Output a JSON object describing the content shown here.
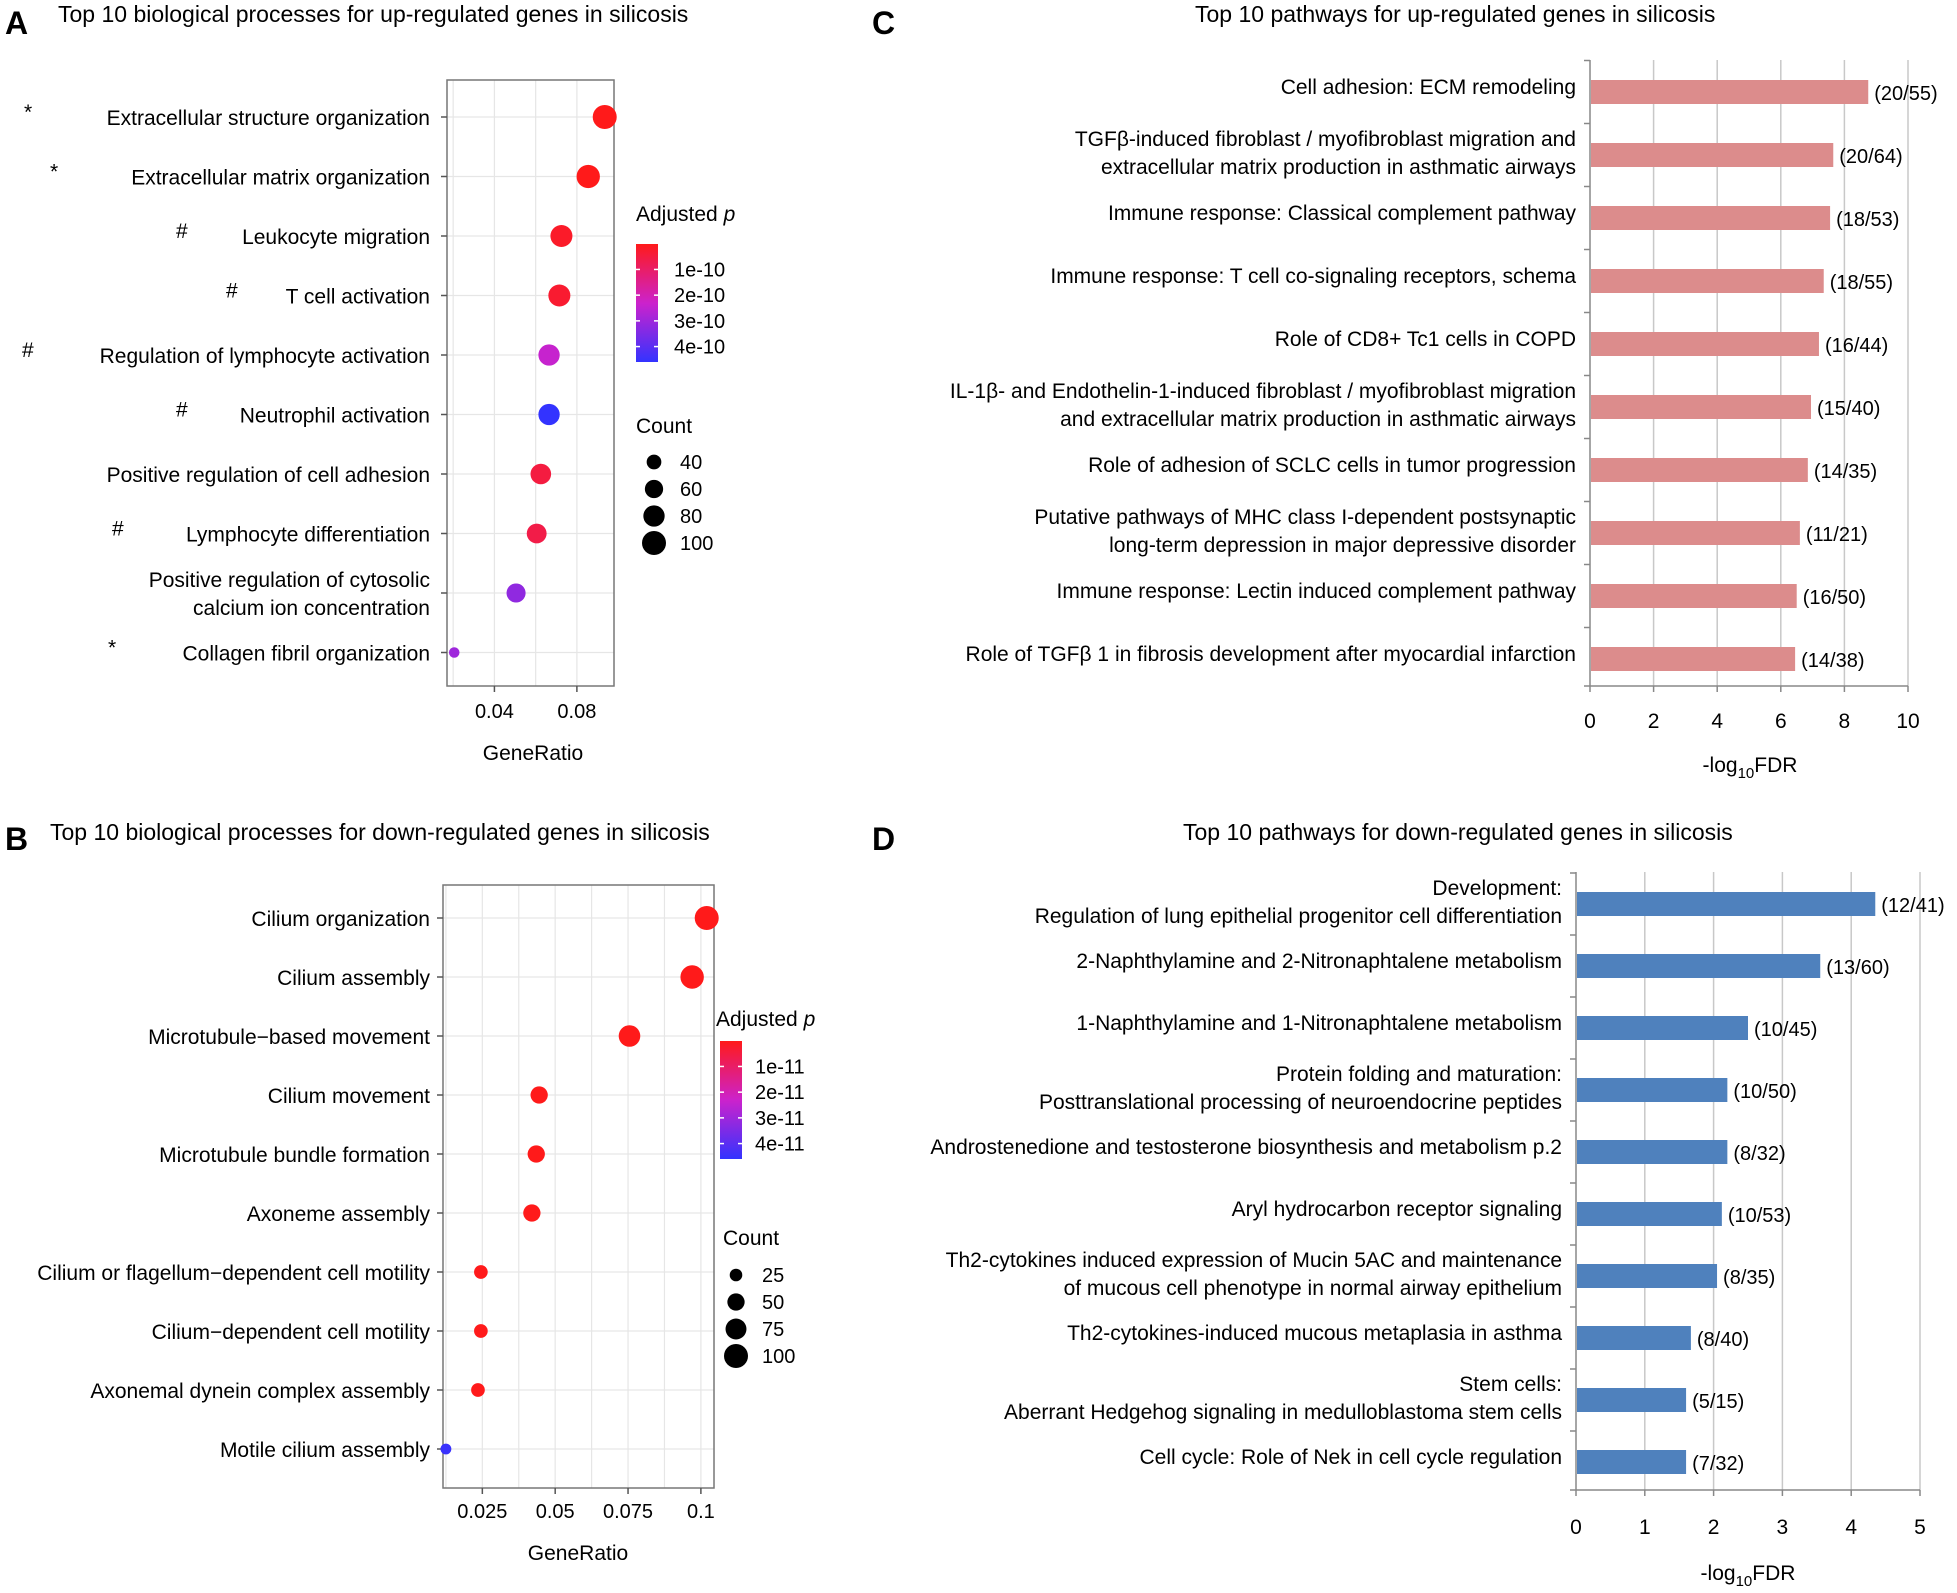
{
  "panels": {
    "A": {
      "letter": "A",
      "title": "Top 10 biological processes for up-regulated genes in silicosis"
    },
    "B": {
      "letter": "B",
      "title": "Top 10 biological processes for down-regulated genes in silicosis"
    },
    "C": {
      "letter": "C",
      "title": "Top 10 pathways for up-regulated genes in silicosis"
    },
    "D": {
      "letter": "D",
      "title": "Top 10 pathways for down-regulated genes in silicosis"
    }
  },
  "colors": {
    "high": "#ff1a1a",
    "mid": "#cc22cc",
    "low": "#3333ff",
    "up_bar": "#dc8c8c",
    "down_bar": "#4f81bd",
    "grid": "#e6e6e6",
    "frame": "#777777"
  },
  "chart_data": [
    {
      "id": "A",
      "type": "scatter",
      "title": "Top 10 biological processes for up-regulated genes in silicosis",
      "xlabel": "GeneRatio",
      "xlim": [
        0.017,
        0.098
      ],
      "xticks": [
        0.04,
        0.08
      ],
      "xtick_labels": [
        "0.04",
        "0.08"
      ],
      "points": [
        {
          "mark": "*",
          "label": [
            "Extracellular structure organization"
          ],
          "x": 0.0935,
          "count": 100,
          "padj": 1e-12
        },
        {
          "mark": "*",
          "label": [
            "Extracellular matrix organization"
          ],
          "x": 0.0855,
          "count": 95,
          "padj": 1e-12
        },
        {
          "mark": "#",
          "label": [
            "Leukocyte migration"
          ],
          "x": 0.0725,
          "count": 85,
          "padj": 2e-11
        },
        {
          "mark": "#",
          "label": [
            "T cell activation"
          ],
          "x": 0.0715,
          "count": 85,
          "padj": 3e-11
        },
        {
          "mark": "#",
          "label": [
            "Regulation of lymphocyte activation"
          ],
          "x": 0.0665,
          "count": 80,
          "padj": 2.4e-10
        },
        {
          "mark": "#",
          "label": [
            "Neutrophil activation"
          ],
          "x": 0.0665,
          "count": 80,
          "padj": 5e-10
        },
        {
          "mark": "",
          "label": [
            "Positive regulation of cell adhesion"
          ],
          "x": 0.0625,
          "count": 75,
          "padj": 5e-11
        },
        {
          "mark": "#",
          "label": [
            "Lymphocyte differentiation"
          ],
          "x": 0.0605,
          "count": 70,
          "padj": 6e-11
        },
        {
          "mark": "",
          "label": [
            "Positive regulation of cytosolic",
            "calcium ion concentration"
          ],
          "x": 0.0505,
          "count": 65,
          "padj": 3.2e-10
        },
        {
          "mark": "*",
          "label": [
            "Collagen fibril organization"
          ],
          "x": 0.0205,
          "count": 22,
          "padj": 3e-10
        }
      ],
      "color_legend": {
        "title": "Adjusted ",
        "title_italic": "p",
        "ticks": [
          1e-10,
          2e-10,
          3e-10,
          4e-10
        ],
        "labels": [
          "1e-10",
          "2e-10",
          "3e-10",
          "4e-10"
        ],
        "range": [
          1e-12,
          4.6e-10
        ]
      },
      "size_legend": {
        "title": "Count",
        "values": [
          40,
          60,
          80,
          100
        ],
        "labels": [
          "40",
          "60",
          "80",
          "100"
        ]
      }
    },
    {
      "id": "B",
      "type": "scatter",
      "title": "Top 10 biological processes for down-regulated genes in silicosis",
      "xlabel": "GeneRatio",
      "xlim": [
        0.0115,
        0.1045
      ],
      "xticks": [
        0.025,
        0.05,
        0.075,
        0.1
      ],
      "xtick_labels": [
        "0.025",
        "0.05",
        "0.075",
        "0.1"
      ],
      "points": [
        {
          "mark": "",
          "label": [
            "Cilium organization"
          ],
          "x": 0.102,
          "count": 100,
          "padj": 1e-14
        },
        {
          "mark": "",
          "label": [
            "Cilium assembly"
          ],
          "x": 0.097,
          "count": 95,
          "padj": 1e-14
        },
        {
          "mark": "",
          "label": [
            "Microtubule−based movement"
          ],
          "x": 0.0755,
          "count": 80,
          "padj": 1e-14
        },
        {
          "mark": "",
          "label": [
            "Cilium movement"
          ],
          "x": 0.0445,
          "count": 50,
          "padj": 1e-13
        },
        {
          "mark": "",
          "label": [
            "Microtubule bundle formation"
          ],
          "x": 0.0435,
          "count": 50,
          "padj": 1e-13
        },
        {
          "mark": "",
          "label": [
            "Axoneme assembly"
          ],
          "x": 0.042,
          "count": 50,
          "padj": 1e-13
        },
        {
          "mark": "",
          "label": [
            "Cilium or flagellum−dependent cell motility"
          ],
          "x": 0.0245,
          "count": 30,
          "padj": 2e-13
        },
        {
          "mark": "",
          "label": [
            "Cilium−dependent cell motility"
          ],
          "x": 0.0245,
          "count": 30,
          "padj": 2e-13
        },
        {
          "mark": "",
          "label": [
            "Axonemal dynein complex assembly"
          ],
          "x": 0.0235,
          "count": 30,
          "padj": 2e-13
        },
        {
          "mark": "",
          "label": [
            "Motile cilium assembly"
          ],
          "x": 0.0125,
          "count": 18,
          "padj": 4.5e-11
        }
      ],
      "color_legend": {
        "title": "Adjusted ",
        "title_italic": "p",
        "ticks": [
          1e-11,
          2e-11,
          3e-11,
          4e-11
        ],
        "labels": [
          "1e-11",
          "2e-11",
          "3e-11",
          "4e-11"
        ],
        "range": [
          1e-13,
          4.6e-11
        ]
      },
      "size_legend": {
        "title": "Count",
        "values": [
          25,
          50,
          75,
          100
        ],
        "labels": [
          "25",
          "50",
          "75",
          "100"
        ]
      }
    },
    {
      "id": "C",
      "type": "bar",
      "orientation": "horizontal",
      "title": "Top 10 pathways for up-regulated genes in silicosis",
      "xlabel_parts": [
        "-log",
        "10",
        "FDR"
      ],
      "xlim": [
        0,
        10
      ],
      "xticks": [
        0,
        2,
        4,
        6,
        8,
        10
      ],
      "bars": [
        {
          "label": [
            "Cell adhesion: ECM remodeling"
          ],
          "value": 8.75,
          "annotation": "(20/55)"
        },
        {
          "label": [
            "TGFβ-induced fibroblast / myofibroblast migration and",
            "extracellular matrix production in asthmatic airways"
          ],
          "value": 7.65,
          "annotation": "(20/64)"
        },
        {
          "label": [
            "Immune response: Classical complement pathway"
          ],
          "value": 7.55,
          "annotation": "(18/53)"
        },
        {
          "label": [
            "Immune response: T cell co-signaling receptors, schema"
          ],
          "value": 7.35,
          "annotation": "(18/55)"
        },
        {
          "label": [
            "Role of CD8+ Tc1 cells in COPD"
          ],
          "value": 7.2,
          "annotation": "(16/44)"
        },
        {
          "label": [
            "IL-1β- and Endothelin-1-induced fibroblast / myofibroblast migration",
            "and extracellular matrix production in asthmatic airways"
          ],
          "value": 6.95,
          "annotation": "(15/40)"
        },
        {
          "label": [
            "Role of adhesion of SCLC cells in tumor progression"
          ],
          "value": 6.85,
          "annotation": "(14/35)"
        },
        {
          "label": [
            "Putative pathways of MHC class I-dependent postsynaptic",
            "long-term depression in major depressive disorder"
          ],
          "value": 6.6,
          "annotation": "(11/21)"
        },
        {
          "label": [
            "Immune response: Lectin induced complement pathway"
          ],
          "value": 6.5,
          "annotation": "(16/50)"
        },
        {
          "label": [
            "Role of TGFβ 1 in fibrosis development after myocardial infarction"
          ],
          "value": 6.45,
          "annotation": "(14/38)"
        }
      ]
    },
    {
      "id": "D",
      "type": "bar",
      "orientation": "horizontal",
      "title": "Top 10 pathways for down-regulated genes in silicosis",
      "xlabel_parts": [
        "-log",
        "10",
        "FDR"
      ],
      "xlim": [
        0,
        5
      ],
      "xticks": [
        0,
        1,
        2,
        3,
        4,
        5
      ],
      "bars": [
        {
          "label": [
            "Development:",
            "Regulation of lung epithelial progenitor cell differentiation"
          ],
          "value": 4.35,
          "annotation": "(12/41)"
        },
        {
          "label": [
            "2-Naphthylamine and 2-Nitronaphtalene metabolism"
          ],
          "value": 3.55,
          "annotation": "(13/60)"
        },
        {
          "label": [
            "1-Naphthylamine and 1-Nitronaphtalene metabolism"
          ],
          "value": 2.5,
          "annotation": "(10/45)"
        },
        {
          "label": [
            "Protein folding and maturation:",
            "Posttranslational processing of neuroendocrine peptides"
          ],
          "value": 2.2,
          "annotation": "(10/50)"
        },
        {
          "label": [
            "Androstenedione and testosterone biosynthesis and metabolism p.2"
          ],
          "value": 2.2,
          "annotation": "(8/32)"
        },
        {
          "label": [
            "Aryl hydrocarbon receptor signaling"
          ],
          "value": 2.12,
          "annotation": "(10/53)"
        },
        {
          "label": [
            "Th2-cytokines induced expression of Mucin 5AC and maintenance",
            "of mucous cell phenotype in normal airway epithelium"
          ],
          "value": 2.05,
          "annotation": "(8/35)"
        },
        {
          "label": [
            "Th2-cytokines-induced mucous metaplasia in asthma"
          ],
          "value": 1.67,
          "annotation": "(8/40)"
        },
        {
          "label": [
            "Stem cells:",
            "Aberrant Hedgehog signaling in medulloblastoma stem cells"
          ],
          "value": 1.6,
          "annotation": "(5/15)"
        },
        {
          "label": [
            "Cell cycle: Role of Nek in cell cycle regulation"
          ],
          "value": 1.6,
          "annotation": "(7/32)"
        }
      ]
    }
  ]
}
